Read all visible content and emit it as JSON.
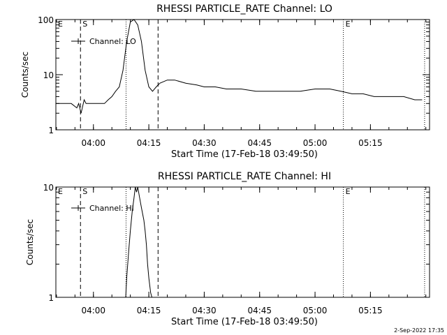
{
  "footer_date": "2-Sep-2022 17:35",
  "chart_data": [
    {
      "type": "line",
      "title": "RHESSI PARTICLE_RATE Channel: LO",
      "xlabel": "Start Time (17-Feb-18 03:49:50)",
      "ylabel": "Counts/sec",
      "yscale": "log",
      "ylim": [
        1,
        100
      ],
      "xlim": [
        "03:49:50",
        "05:31:00"
      ],
      "x_ticks": [
        "04:00",
        "04:15",
        "04:30",
        "04:45",
        "05:00",
        "05:15"
      ],
      "y_ticks": [
        "1",
        "10",
        "100"
      ],
      "legend": {
        "entries": [
          "Channel: LO"
        ],
        "location": "upper-left"
      },
      "markers": [
        {
          "time": "03:49:50",
          "label": "E",
          "style": "dotted"
        },
        {
          "time": "03:56:30",
          "label": "S",
          "style": "dashed"
        },
        {
          "time": "04:08:50",
          "label": "",
          "style": "dotted"
        },
        {
          "time": "04:17:30",
          "label": "",
          "style": "dashed"
        },
        {
          "time": "05:07:40",
          "label": "E",
          "style": "dotted"
        },
        {
          "time": "05:29:40",
          "label": "",
          "style": "dotted"
        }
      ],
      "series": [
        {
          "name": "Channel: LO",
          "x": [
            "03:49:50",
            "03:52:00",
            "03:54:00",
            "03:55:30",
            "03:56:00",
            "03:56:40",
            "03:57:30",
            "03:58:00",
            "03:59:00",
            "04:00:00",
            "04:01:00",
            "04:02:00",
            "04:03:00",
            "04:04:00",
            "04:05:00",
            "04:06:00",
            "04:07:00",
            "04:08:00",
            "04:09:00",
            "04:10:00",
            "04:11:00",
            "04:12:00",
            "04:13:00",
            "04:14:00",
            "04:15:00",
            "04:16:00",
            "04:17:00",
            "04:18:00",
            "04:20:00",
            "04:22:00",
            "04:25:00",
            "04:28:00",
            "04:30:00",
            "04:33:00",
            "04:36:00",
            "04:40:00",
            "04:44:00",
            "04:48:00",
            "04:52:00",
            "04:56:00",
            "05:00:00",
            "05:04:00",
            "05:07:00",
            "05:10:00",
            "05:13:00",
            "05:16:00",
            "05:20:00",
            "05:24:00",
            "05:27:00",
            "05:29:00"
          ],
          "values": [
            3,
            3,
            3,
            2.5,
            3,
            2,
            3.5,
            3,
            3,
            3,
            3,
            3,
            3,
            3.5,
            4,
            5,
            6,
            12,
            40,
            90,
            100,
            80,
            40,
            12,
            6,
            5,
            6,
            7,
            8,
            8,
            7,
            6.5,
            6,
            6,
            5.5,
            5.5,
            5,
            5,
            5,
            5,
            5.5,
            5.5,
            5,
            4.5,
            4.5,
            4,
            4,
            4,
            3.5,
            3.5
          ]
        }
      ]
    },
    {
      "type": "line",
      "title": "RHESSI PARTICLE_RATE Channel: HI",
      "xlabel": "Start Time (17-Feb-18 03:49:50)",
      "ylabel": "Counts/sec",
      "yscale": "log",
      "ylim": [
        1,
        10
      ],
      "xlim": [
        "03:49:50",
        "05:31:00"
      ],
      "x_ticks": [
        "04:00",
        "04:15",
        "04:30",
        "04:45",
        "05:00",
        "05:15"
      ],
      "y_ticks": [
        "1",
        "10"
      ],
      "legend": {
        "entries": [
          "Channel: HI"
        ],
        "location": "upper-left"
      },
      "markers": [
        {
          "time": "03:49:50",
          "label": "E",
          "style": "dotted"
        },
        {
          "time": "03:56:30",
          "label": "S",
          "style": "dashed"
        },
        {
          "time": "04:08:50",
          "label": "",
          "style": "dotted"
        },
        {
          "time": "04:17:30",
          "label": "",
          "style": "dashed"
        },
        {
          "time": "05:07:40",
          "label": "E",
          "style": "dotted"
        },
        {
          "time": "05:29:40",
          "label": "",
          "style": "dotted"
        }
      ],
      "series": [
        {
          "name": "Channel: HI",
          "x": [
            "04:08:45",
            "04:09:00",
            "04:09:30",
            "04:10:00",
            "04:10:30",
            "04:11:00",
            "04:11:20",
            "04:11:40",
            "04:12:00",
            "04:12:30",
            "04:13:00",
            "04:13:40",
            "04:14:00",
            "04:14:20",
            "04:14:40",
            "04:15:00",
            "04:15:30",
            "04:15:50"
          ],
          "values": [
            1,
            1.5,
            2.5,
            4,
            6,
            8,
            10,
            9,
            10,
            8,
            6.5,
            5,
            4,
            3,
            2,
            1.5,
            1.1,
            1
          ]
        }
      ]
    }
  ]
}
